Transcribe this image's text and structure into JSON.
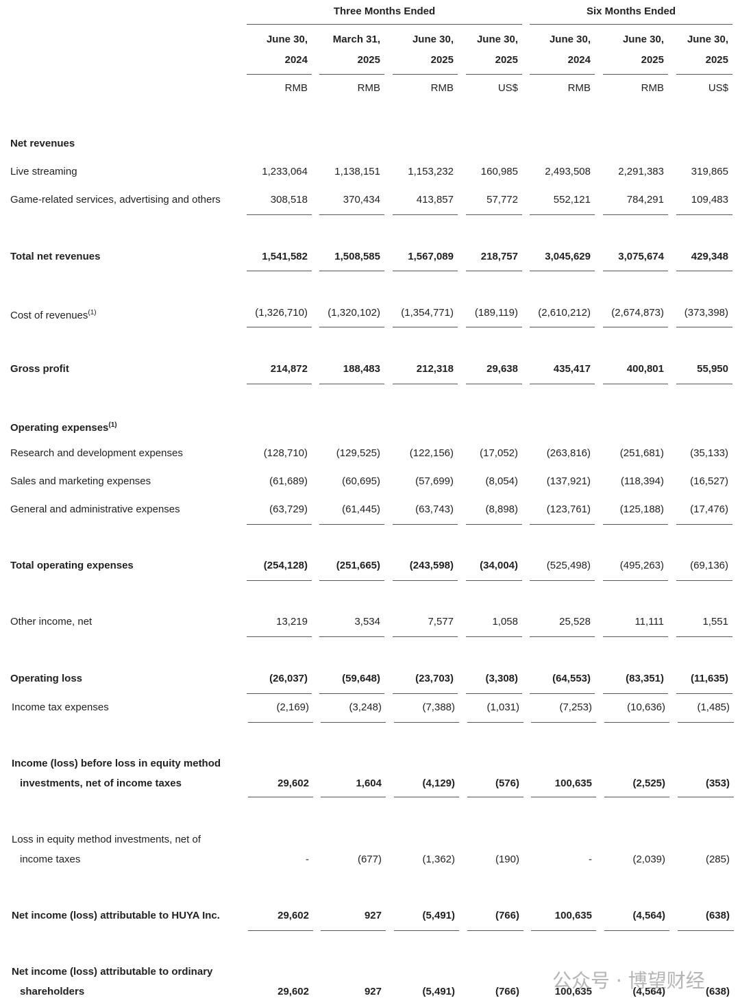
{
  "table": {
    "groups": [
      "Three Months Ended",
      "Six Months Ended"
    ],
    "columns": [
      {
        "date": [
          "June 30,",
          "2024"
        ],
        "currency": "RMB"
      },
      {
        "date": [
          "March 31,",
          "2025"
        ],
        "currency": "RMB"
      },
      {
        "date": [
          "June 30,",
          "2025"
        ],
        "currency": "RMB"
      },
      {
        "date": [
          "June 30,",
          "2025"
        ],
        "currency": "US$"
      },
      {
        "date": [
          "June 30,",
          "2024"
        ],
        "currency": "RMB"
      },
      {
        "date": [
          "June 30,",
          "2025"
        ],
        "currency": "RMB"
      },
      {
        "date": [
          "June 30,",
          "2025"
        ],
        "currency": "US$"
      }
    ],
    "rows": [
      {
        "label": [
          "Net revenues"
        ]
      },
      {
        "label": [
          "Live streaming"
        ],
        "values": [
          "1,233,064",
          "1,138,151",
          "1,153,232",
          "160,985",
          "2,493,508",
          "2,291,383",
          "319,865"
        ]
      },
      {
        "label": [
          "Game-related services, advertising and others"
        ],
        "values": [
          "308,518",
          "370,434",
          "413,857",
          "57,772",
          "552,121",
          "784,291",
          "109,483"
        ]
      },
      {
        "label": [
          "Total net revenues"
        ],
        "values": [
          "1,541,582",
          "1,508,585",
          "1,567,089",
          "218,757",
          "3,045,629",
          "3,075,674",
          "429,348"
        ]
      },
      {
        "label": [
          "Cost of revenues"
        ],
        "note": "(1)",
        "values": [
          "(1,326,710)",
          "(1,320,102)",
          "(1,354,771)",
          "(189,119)",
          "(2,610,212)",
          "(2,674,873)",
          "(373,398)"
        ]
      },
      {
        "label": [
          "Gross profit"
        ],
        "values": [
          "214,872",
          "188,483",
          "212,318",
          "29,638",
          "435,417",
          "400,801",
          "55,950"
        ]
      },
      {
        "label": [
          "Operating expenses"
        ],
        "note": "(1)"
      },
      {
        "label": [
          "Research and development expenses"
        ],
        "values": [
          "(128,710)",
          "(129,525)",
          "(122,156)",
          "(17,052)",
          "(263,816)",
          "(251,681)",
          "(35,133)"
        ]
      },
      {
        "label": [
          "Sales and marketing expenses"
        ],
        "values": [
          "(61,689)",
          "(60,695)",
          "(57,699)",
          "(8,054)",
          "(137,921)",
          "(118,394)",
          "(16,527)"
        ]
      },
      {
        "label": [
          "General and administrative expenses"
        ],
        "values": [
          "(63,729)",
          "(61,445)",
          "(63,743)",
          "(8,898)",
          "(123,761)",
          "(125,188)",
          "(17,476)"
        ]
      },
      {
        "label": [
          "Total operating expenses"
        ],
        "values": [
          "(254,128)",
          "(251,665)",
          "(243,598)",
          "(34,004)",
          "(525,498)",
          "(495,263)",
          "(69,136)"
        ]
      },
      {
        "label": [
          "Other income, net"
        ],
        "values": [
          "13,219",
          "3,534",
          "7,577",
          "1,058",
          "25,528",
          "11,111",
          "1,551"
        ]
      },
      {
        "label": [
          "Operating loss"
        ],
        "values": [
          "(26,037)",
          "(59,648)",
          "(23,703)",
          "(3,308)",
          "(64,553)",
          "(83,351)",
          "(11,635)"
        ]
      },
      {
        "label": [
          "Income tax expenses"
        ],
        "values": [
          "(2,169)",
          "(3,248)",
          "(7,388)",
          "(1,031)",
          "(7,253)",
          "(10,636)",
          "(1,485)"
        ]
      },
      {
        "label": [
          "Income (loss) before loss in equity method",
          "investments, net of income taxes"
        ],
        "values": [
          "29,602",
          "1,604",
          "(4,129)",
          "(576)",
          "100,635",
          "(2,525)",
          "(353)"
        ]
      },
      {
        "label": [
          "Loss in equity method investments, net of",
          "income taxes"
        ],
        "values": [
          "-",
          "(677)",
          "(1,362)",
          "(190)",
          "-",
          "(2,039)",
          "(285)"
        ]
      },
      {
        "label": [
          "Net income (loss) attributable to HUYA Inc."
        ],
        "values": [
          "29,602",
          "927",
          "(5,491)",
          "(766)",
          "100,635",
          "(4,564)",
          "(638)"
        ]
      },
      {
        "label": [
          "Net income (loss) attributable to ordinary",
          "shareholders"
        ],
        "values": [
          "29,602",
          "927",
          "(5,491)",
          "(766)",
          "100,635",
          "(4,564)",
          "(638)"
        ]
      }
    ]
  },
  "watermark": "公众号 · 博望财经"
}
